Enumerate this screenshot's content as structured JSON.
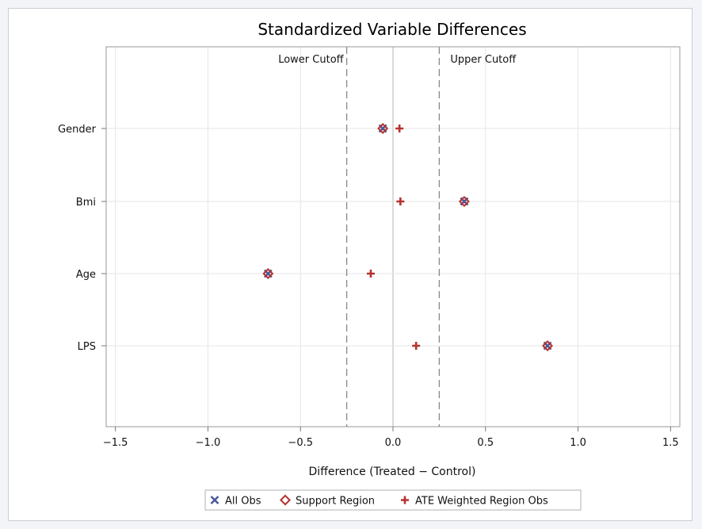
{
  "chart_data": {
    "type": "scatter",
    "title": "Standardized Variable Differences",
    "xlabel": "Difference (Treated - Control)",
    "ylabel": "",
    "xlim": [
      -1.55,
      1.55
    ],
    "x_ticks": [
      -1.5,
      -1.0,
      -0.5,
      0.0,
      0.5,
      1.0,
      1.5
    ],
    "x_tick_labels": [
      "-1.5",
      "-1.0",
      "-0.5",
      "0.0",
      "0.5",
      "1.0",
      "1.5"
    ],
    "categories": [
      "Gender",
      "Bmi",
      "Age",
      "LPS"
    ],
    "reference_lines": [
      {
        "label": "Lower Cutoff",
        "x": -0.25
      },
      {
        "label": "Upper Cutoff",
        "x": 0.25
      }
    ],
    "grid": true,
    "legend_position": "bottom",
    "series": [
      {
        "name": "All Obs",
        "marker": "x",
        "color": "#4a5a9a",
        "values": [
          -0.055,
          0.385,
          -0.675,
          0.835
        ]
      },
      {
        "name": "Support Region",
        "marker": "diamond",
        "color": "#b5322e",
        "values": [
          -0.055,
          0.385,
          -0.675,
          0.835
        ]
      },
      {
        "name": "ATE Weighted Region Obs",
        "marker": "plus",
        "color": "#b5322e",
        "values": [
          0.035,
          0.04,
          -0.12,
          0.125
        ]
      }
    ]
  }
}
